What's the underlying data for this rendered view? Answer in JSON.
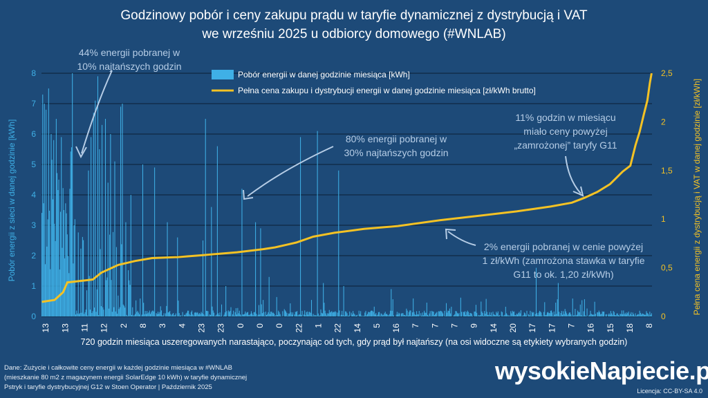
{
  "title_line1": "Godzinowy pobór i ceny zakupu prądu w taryfie dynamicznej z dystrybucją i VAT",
  "title_line2": "we wrześniu 2025 u odbiorcy domowego (#WNLAB)",
  "annotations": {
    "a1_l1": "44% energii pobranej w",
    "a1_l2": "10% najtańszych godzin",
    "a2_l1": "80% energii pobranej w",
    "a2_l2": "30% najtańszych godzin",
    "a3_l1": "11% godzin w miesiącu",
    "a3_l2": "miało ceny powyżej",
    "a3_l3": "„zamrożonej” taryfy G11",
    "a4_l1": "2% energii pobranej w cenie powyżej",
    "a4_l2": "1 zł/kWh (zamrożona stawka w taryfie",
    "a4_l3": "G11 to ok. 1,20 zł/kWh)"
  },
  "footer": {
    "l1": "Dane: Zużycie i całkowite ceny energii w każdej godzinie miesiąca w #WNLAB",
    "l2": "(mieszkanie 80 m2 z magazynem energii SolarEdge 10 kWh) w taryfie dynamicznej",
    "l3": "Pstryk i taryfie dystrybucyjnej G12 w Stoen Operator    |    Październik 2025"
  },
  "brand": "wysokieNapiecie.pl",
  "license": "Licencja: CC-BY-SA 4.0",
  "colors": {
    "background": "#1d4a78",
    "bars": "#3fb0e6",
    "price_line": "#f4c224",
    "grid": "#0b1e33"
  },
  "chart_data": {
    "type": "bar+line",
    "xlabel": "720 godzin miesiąca uszeregowanych narastająco, poczynając od tych, gdy prąd był najtańszy (na osi widoczne są etykiety wybranych godzin)",
    "ylabel_left": "Pobór energii z sieci w danej godzinie [kWh]",
    "ylabel_right": "Pełna cena energii z dystrybucją i VAT w danej godzinie [zł/kWh]",
    "y_left_range": [
      0,
      8
    ],
    "y_left_ticks": [
      "0",
      "1",
      "2",
      "3",
      "4",
      "5",
      "6",
      "7",
      "8"
    ],
    "y_right_range": [
      0,
      2.5
    ],
    "y_right_ticks": [
      "0",
      "0,5",
      "1",
      "1,5",
      "2",
      "2,5"
    ],
    "grid": "horizontal",
    "legend_position": "top-center",
    "x_ticks": [
      "13",
      "13",
      "11",
      "12",
      "2",
      "8",
      "3",
      "4",
      "23",
      "23",
      "0",
      "0",
      "0",
      "22",
      "1",
      "22",
      "14",
      "5",
      "16",
      "7",
      "7",
      "7",
      "9",
      "14",
      "20",
      "17",
      "17",
      "7",
      "16",
      "15",
      "18",
      "8"
    ],
    "series": [
      {
        "name": "Pobór energii w danej godzinie miesiąca [kWh]",
        "type": "bar",
        "axis": "left",
        "highlights": [
          {
            "x": 1,
            "y": 7.3
          },
          {
            "x": 3,
            "y": 7.0
          },
          {
            "x": 5,
            "y": 6.8
          },
          {
            "x": 8,
            "y": 7.5
          },
          {
            "x": 11,
            "y": 6.0
          },
          {
            "x": 14,
            "y": 5.8
          },
          {
            "x": 17,
            "y": 6.5
          },
          {
            "x": 20,
            "y": 4.5
          },
          {
            "x": 23,
            "y": 5.9
          },
          {
            "x": 26,
            "y": 3.5
          },
          {
            "x": 30,
            "y": 2.7
          },
          {
            "x": 33,
            "y": 4.2
          },
          {
            "x": 36,
            "y": 8.0
          },
          {
            "x": 38,
            "y": 3.0
          },
          {
            "x": 55,
            "y": 4.8
          },
          {
            "x": 58,
            "y": 5.9
          },
          {
            "x": 61,
            "y": 6.7
          },
          {
            "x": 63,
            "y": 7.1
          },
          {
            "x": 66,
            "y": 7.9
          },
          {
            "x": 68,
            "y": 5.5
          },
          {
            "x": 71,
            "y": 6.3
          },
          {
            "x": 75,
            "y": 6.5
          },
          {
            "x": 78,
            "y": 4.4
          },
          {
            "x": 81,
            "y": 6.0
          },
          {
            "x": 86,
            "y": 5.1
          },
          {
            "x": 93,
            "y": 6.9
          },
          {
            "x": 95,
            "y": 7.0
          },
          {
            "x": 99,
            "y": 3.1
          },
          {
            "x": 105,
            "y": 4.0
          },
          {
            "x": 119,
            "y": 5.0
          },
          {
            "x": 133,
            "y": 4.9
          },
          {
            "x": 148,
            "y": 3.1
          },
          {
            "x": 160,
            "y": 2.6
          },
          {
            "x": 190,
            "y": 2.5
          },
          {
            "x": 193,
            "y": 6.5
          },
          {
            "x": 200,
            "y": 3.6
          },
          {
            "x": 207,
            "y": 5.6
          },
          {
            "x": 217,
            "y": 1.0
          },
          {
            "x": 236,
            "y": 4.2
          },
          {
            "x": 252,
            "y": 3.1
          },
          {
            "x": 258,
            "y": 2.9
          },
          {
            "x": 268,
            "y": 1.3
          },
          {
            "x": 305,
            "y": 5.9
          },
          {
            "x": 325,
            "y": 6.1
          },
          {
            "x": 332,
            "y": 1.1
          },
          {
            "x": 350,
            "y": 4.8
          },
          {
            "x": 356,
            "y": 1.0
          },
          {
            "x": 412,
            "y": 0.9
          },
          {
            "x": 583,
            "y": 1.6
          },
          {
            "x": 609,
            "y": 1.1
          }
        ],
        "baseline_note": "remaining hours mostly 0–0.3 kWh"
      },
      {
        "name": "Pełna cena zakupu i dystrybucji energii w danej godzinie miesiąca [zł/kWh brutto]",
        "type": "line",
        "axis": "right",
        "points": [
          [
            0,
            0.15
          ],
          [
            15,
            0.17
          ],
          [
            25,
            0.25
          ],
          [
            30,
            0.35
          ],
          [
            60,
            0.38
          ],
          [
            70,
            0.45
          ],
          [
            90,
            0.53
          ],
          [
            110,
            0.57
          ],
          [
            130,
            0.6
          ],
          [
            160,
            0.61
          ],
          [
            190,
            0.63
          ],
          [
            230,
            0.66
          ],
          [
            260,
            0.69
          ],
          [
            275,
            0.71
          ],
          [
            290,
            0.74
          ],
          [
            300,
            0.76
          ],
          [
            320,
            0.82
          ],
          [
            345,
            0.86
          ],
          [
            380,
            0.9
          ],
          [
            420,
            0.93
          ],
          [
            470,
            0.99
          ],
          [
            520,
            1.04
          ],
          [
            560,
            1.08
          ],
          [
            600,
            1.13
          ],
          [
            625,
            1.17
          ],
          [
            640,
            1.22
          ],
          [
            655,
            1.28
          ],
          [
            670,
            1.36
          ],
          [
            685,
            1.49
          ],
          [
            694,
            1.55
          ],
          [
            700,
            1.76
          ],
          [
            705,
            1.9
          ],
          [
            710,
            2.08
          ],
          [
            714,
            2.22
          ],
          [
            717,
            2.4
          ],
          [
            719,
            2.5
          ]
        ]
      }
    ]
  }
}
